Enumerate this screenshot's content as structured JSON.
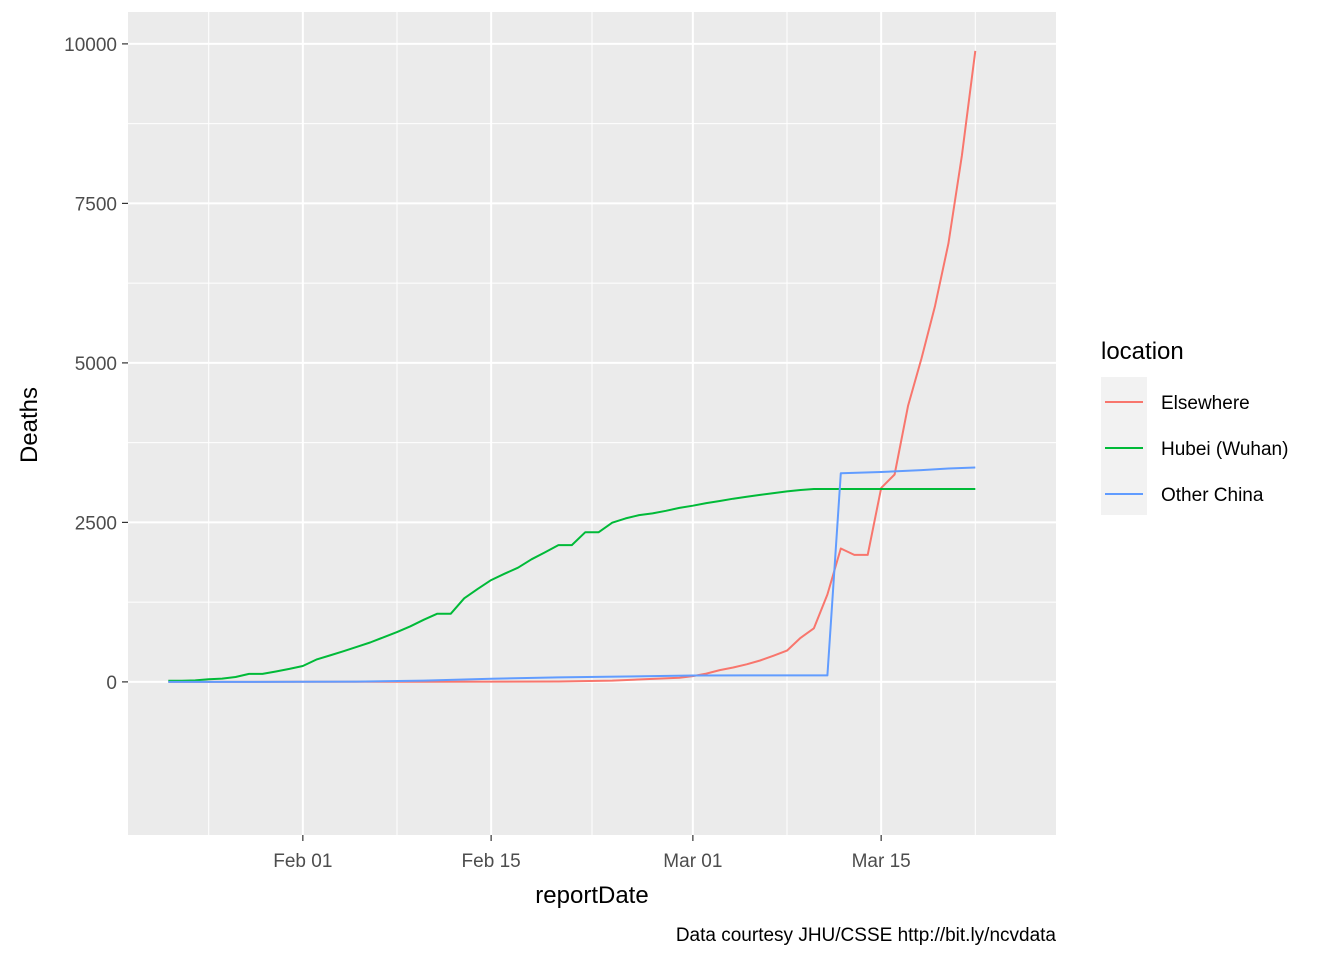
{
  "chart_data": {
    "type": "line",
    "title": "",
    "xlabel": "reportDate",
    "ylabel": "Deaths",
    "caption": "Data courtesy JHU/CSSE http://bit.ly/ncvdata",
    "x_start_date": "2020-01-22",
    "xlim": [
      "2020-01-19",
      "2020-03-28"
    ],
    "x_ticks": [
      "2020-02-01",
      "2020-02-15",
      "2020-03-01",
      "2020-03-15"
    ],
    "x_tick_labels": [
      "Feb 01",
      "Feb 15",
      "Mar 01",
      "Mar 15"
    ],
    "ylim": [
      -2400,
      10500
    ],
    "y_ticks": [
      0,
      2500,
      5000,
      7500,
      10000
    ],
    "y_tick_labels": [
      "0",
      "2500",
      "5000",
      "7500",
      "10000"
    ],
    "grid": true,
    "legend": {
      "title": "location",
      "placement": "right",
      "entries": [
        "Elsewhere",
        "Hubei (Wuhan)",
        "Other China"
      ]
    },
    "series": [
      {
        "name": "Elsewhere",
        "color": "#F8766D",
        "points": [
          [
            "2020-01-22",
            0
          ],
          [
            "2020-02-01",
            1
          ],
          [
            "2020-02-10",
            3
          ],
          [
            "2020-02-20",
            6
          ],
          [
            "2020-02-24",
            20
          ],
          [
            "2020-02-29",
            64
          ],
          [
            "2020-03-01",
            90
          ],
          [
            "2020-03-02",
            130
          ],
          [
            "2020-03-03",
            185
          ],
          [
            "2020-03-04",
            225
          ],
          [
            "2020-03-05",
            275
          ],
          [
            "2020-03-06",
            335
          ],
          [
            "2020-03-07",
            410
          ],
          [
            "2020-03-08",
            490
          ],
          [
            "2020-03-09",
            690
          ],
          [
            "2020-03-10",
            840
          ],
          [
            "2020-03-11",
            1370
          ],
          [
            "2020-03-12",
            2090
          ],
          [
            "2020-03-13",
            1990
          ],
          [
            "2020-03-14",
            1990
          ],
          [
            "2020-03-15",
            3040
          ],
          [
            "2020-03-16",
            3250
          ],
          [
            "2020-03-17",
            4330
          ],
          [
            "2020-03-18",
            5070
          ],
          [
            "2020-03-19",
            5890
          ],
          [
            "2020-03-20",
            6870
          ],
          [
            "2020-03-21",
            8250
          ],
          [
            "2020-03-22",
            9890
          ]
        ]
      },
      {
        "name": "Hubei (Wuhan)",
        "color": "#00BA38",
        "points": [
          [
            "2020-01-22",
            17
          ],
          [
            "2020-01-23",
            17
          ],
          [
            "2020-01-24",
            24
          ],
          [
            "2020-01-25",
            40
          ],
          [
            "2020-01-26",
            52
          ],
          [
            "2020-01-27",
            76
          ],
          [
            "2020-01-28",
            125
          ],
          [
            "2020-01-29",
            125
          ],
          [
            "2020-01-30",
            162
          ],
          [
            "2020-01-31",
            204
          ],
          [
            "2020-02-01",
            249
          ],
          [
            "2020-02-02",
            350
          ],
          [
            "2020-02-03",
            414
          ],
          [
            "2020-02-04",
            479
          ],
          [
            "2020-02-05",
            549
          ],
          [
            "2020-02-06",
            618
          ],
          [
            "2020-02-07",
            699
          ],
          [
            "2020-02-08",
            780
          ],
          [
            "2020-02-09",
            871
          ],
          [
            "2020-02-10",
            974
          ],
          [
            "2020-02-11",
            1068
          ],
          [
            "2020-02-12",
            1068
          ],
          [
            "2020-02-13",
            1310
          ],
          [
            "2020-02-14",
            1457
          ],
          [
            "2020-02-15",
            1596
          ],
          [
            "2020-02-16",
            1696
          ],
          [
            "2020-02-17",
            1789
          ],
          [
            "2020-02-18",
            1921
          ],
          [
            "2020-02-19",
            2029
          ],
          [
            "2020-02-20",
            2144
          ],
          [
            "2020-02-21",
            2144
          ],
          [
            "2020-02-22",
            2346
          ],
          [
            "2020-02-23",
            2346
          ],
          [
            "2020-02-24",
            2495
          ],
          [
            "2020-02-25",
            2563
          ],
          [
            "2020-02-26",
            2615
          ],
          [
            "2020-02-27",
            2641
          ],
          [
            "2020-02-28",
            2682
          ],
          [
            "2020-02-29",
            2727
          ],
          [
            "2020-03-01",
            2761
          ],
          [
            "2020-03-02",
            2803
          ],
          [
            "2020-03-03",
            2835
          ],
          [
            "2020-03-04",
            2871
          ],
          [
            "2020-03-05",
            2902
          ],
          [
            "2020-03-06",
            2931
          ],
          [
            "2020-03-07",
            2959
          ],
          [
            "2020-03-08",
            2986
          ],
          [
            "2020-03-09",
            3008
          ],
          [
            "2020-03-10",
            3024
          ],
          [
            "2020-03-11",
            3024
          ],
          [
            "2020-03-12",
            3024
          ],
          [
            "2020-03-13",
            3024
          ],
          [
            "2020-03-14",
            3024
          ],
          [
            "2020-03-15",
            3024
          ],
          [
            "2020-03-16",
            3024
          ],
          [
            "2020-03-17",
            3024
          ],
          [
            "2020-03-18",
            3024
          ],
          [
            "2020-03-19",
            3024
          ],
          [
            "2020-03-20",
            3024
          ],
          [
            "2020-03-21",
            3024
          ],
          [
            "2020-03-22",
            3024
          ]
        ]
      },
      {
        "name": "Other China",
        "color": "#619CFF",
        "points": [
          [
            "2020-01-22",
            0
          ],
          [
            "2020-02-01",
            1
          ],
          [
            "2020-02-05",
            5
          ],
          [
            "2020-02-10",
            20
          ],
          [
            "2020-02-15",
            50
          ],
          [
            "2020-02-20",
            70
          ],
          [
            "2020-02-25",
            85
          ],
          [
            "2020-03-01",
            100
          ],
          [
            "2020-03-05",
            102
          ],
          [
            "2020-03-11",
            102
          ],
          [
            "2020-03-12",
            3270
          ],
          [
            "2020-03-15",
            3290
          ],
          [
            "2020-03-18",
            3320
          ],
          [
            "2020-03-20",
            3345
          ],
          [
            "2020-03-22",
            3360
          ]
        ]
      }
    ]
  }
}
